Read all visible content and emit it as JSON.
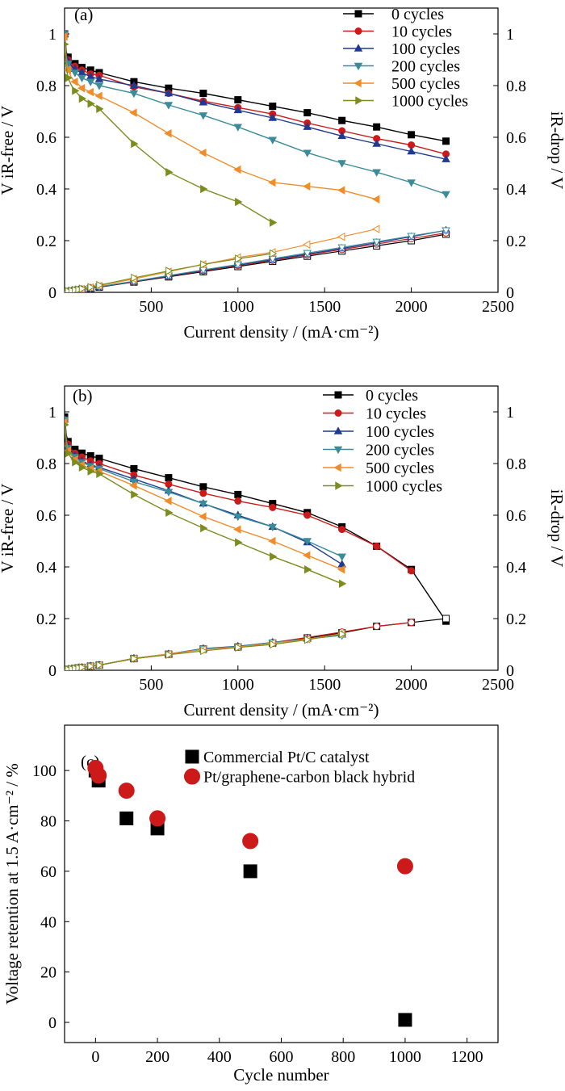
{
  "chart_data": [
    {
      "panel": "(a)",
      "type": "line",
      "xlabel": "Current density / (mA·cm⁻²)",
      "ylabel": "V iR-free / V",
      "y2label": "iR-drop / V",
      "xlim": [
        0,
        2500
      ],
      "ylim": [
        0,
        1.1
      ],
      "y2lim": [
        0,
        1.1
      ],
      "xticks": [
        500,
        1000,
        1500,
        2000,
        2500
      ],
      "yticks": [
        0,
        0.2,
        0.4,
        0.6,
        0.8,
        1.0
      ],
      "y2ticks": [
        0,
        0.2,
        0.4,
        0.6,
        0.8,
        1.0
      ],
      "legend_position": "top-right",
      "series": [
        {
          "name": "0 cycles",
          "color": "#000000",
          "marker": "square",
          "x": [
            0,
            10,
            20,
            40,
            60,
            80,
            100,
            150,
            200,
            400,
            600,
            800,
            1000,
            1200,
            1400,
            1600,
            1800,
            2000,
            2200
          ],
          "y": [
            1.0,
            0.93,
            0.91,
            0.895,
            0.885,
            0.875,
            0.87,
            0.86,
            0.85,
            0.815,
            0.79,
            0.77,
            0.745,
            0.72,
            0.695,
            0.665,
            0.64,
            0.61,
            0.585
          ],
          "ir_x": [
            0,
            20,
            40,
            60,
            80,
            100,
            150,
            200,
            400,
            600,
            800,
            1000,
            1200,
            1400,
            1600,
            1800,
            2000,
            2200
          ],
          "ir_y": [
            0.0,
            0.003,
            0.005,
            0.007,
            0.009,
            0.011,
            0.015,
            0.02,
            0.04,
            0.06,
            0.08,
            0.1,
            0.12,
            0.14,
            0.16,
            0.18,
            0.2,
            0.225
          ]
        },
        {
          "name": "10 cycles",
          "color": "#cc1a1a",
          "marker": "circle",
          "x": [
            0,
            10,
            20,
            40,
            60,
            80,
            100,
            150,
            200,
            400,
            600,
            800,
            1000,
            1200,
            1400,
            1600,
            1800,
            2000,
            2200
          ],
          "y": [
            1.0,
            0.92,
            0.9,
            0.885,
            0.875,
            0.865,
            0.86,
            0.845,
            0.84,
            0.795,
            0.77,
            0.74,
            0.715,
            0.69,
            0.655,
            0.625,
            0.595,
            0.57,
            0.535
          ],
          "ir_x": [
            0,
            20,
            40,
            60,
            80,
            100,
            150,
            200,
            400,
            600,
            800,
            1000,
            1200,
            1400,
            1600,
            1800,
            2000,
            2200
          ],
          "ir_y": [
            0.0,
            0.003,
            0.005,
            0.007,
            0.009,
            0.011,
            0.016,
            0.021,
            0.041,
            0.062,
            0.083,
            0.104,
            0.124,
            0.145,
            0.166,
            0.187,
            0.208,
            0.23
          ]
        },
        {
          "name": "100 cycles",
          "color": "#1f3a8f",
          "marker": "triangle-up",
          "x": [
            0,
            10,
            20,
            40,
            60,
            80,
            100,
            150,
            200,
            400,
            600,
            800,
            1000,
            1200,
            1400,
            1600,
            1800,
            2000,
            2200
          ],
          "y": [
            1.0,
            0.92,
            0.895,
            0.875,
            0.865,
            0.855,
            0.85,
            0.835,
            0.825,
            0.8,
            0.77,
            0.735,
            0.705,
            0.675,
            0.64,
            0.605,
            0.575,
            0.545,
            0.515
          ],
          "ir_x": [
            0,
            20,
            40,
            60,
            80,
            100,
            150,
            200,
            400,
            600,
            800,
            1000,
            1200,
            1400,
            1600,
            1800,
            2000,
            2200
          ],
          "ir_y": [
            0.0,
            0.003,
            0.005,
            0.007,
            0.009,
            0.011,
            0.016,
            0.021,
            0.042,
            0.063,
            0.085,
            0.106,
            0.127,
            0.148,
            0.17,
            0.192,
            0.215,
            0.24
          ]
        },
        {
          "name": "200 cycles",
          "color": "#3a8c9a",
          "marker": "triangle-down",
          "x": [
            0,
            10,
            20,
            40,
            60,
            80,
            100,
            150,
            200,
            400,
            600,
            800,
            1000,
            1200,
            1400,
            1600,
            1800,
            2000,
            2200
          ],
          "y": [
            1.0,
            0.91,
            0.885,
            0.865,
            0.85,
            0.84,
            0.83,
            0.815,
            0.8,
            0.77,
            0.725,
            0.685,
            0.64,
            0.59,
            0.54,
            0.5,
            0.465,
            0.425,
            0.38
          ],
          "ir_x": [
            0,
            20,
            40,
            60,
            80,
            100,
            150,
            200,
            400,
            600,
            800,
            1000,
            1200,
            1400,
            1600,
            1800,
            2000,
            2200
          ],
          "ir_y": [
            0.0,
            0.003,
            0.005,
            0.007,
            0.009,
            0.011,
            0.016,
            0.022,
            0.043,
            0.065,
            0.087,
            0.108,
            0.13,
            0.152,
            0.174,
            0.196,
            0.218,
            0.24
          ]
        },
        {
          "name": "500 cycles",
          "color": "#f08c2a",
          "marker": "triangle-left",
          "x": [
            0,
            10,
            20,
            40,
            60,
            80,
            100,
            150,
            200,
            400,
            600,
            800,
            1000,
            1200,
            1400,
            1600,
            1800
          ],
          "y": [
            0.99,
            0.89,
            0.86,
            0.83,
            0.815,
            0.805,
            0.79,
            0.775,
            0.76,
            0.695,
            0.615,
            0.54,
            0.475,
            0.425,
            0.41,
            0.395,
            0.36
          ],
          "ir_x": [
            0,
            20,
            40,
            60,
            80,
            100,
            150,
            200,
            400,
            600,
            800,
            1000,
            1200,
            1400,
            1600,
            1800
          ],
          "ir_y": [
            0.0,
            0.003,
            0.006,
            0.008,
            0.01,
            0.013,
            0.019,
            0.025,
            0.052,
            0.08,
            0.108,
            0.135,
            0.155,
            0.185,
            0.215,
            0.245
          ]
        },
        {
          "name": "1000 cycles",
          "color": "#7d8c1e",
          "marker": "triangle-right",
          "x": [
            0,
            10,
            20,
            40,
            60,
            80,
            100,
            150,
            200,
            400,
            600,
            800,
            1000,
            1200
          ],
          "y": [
            0.96,
            0.87,
            0.83,
            0.8,
            0.78,
            0.765,
            0.75,
            0.73,
            0.71,
            0.575,
            0.465,
            0.4,
            0.35,
            0.27
          ],
          "ir_x": [
            0,
            20,
            40,
            60,
            80,
            100,
            150,
            200,
            400,
            600,
            800,
            1000,
            1200
          ],
          "ir_y": [
            0.0,
            0.004,
            0.006,
            0.009,
            0.011,
            0.014,
            0.02,
            0.028,
            0.056,
            0.083,
            0.108,
            0.13,
            0.15
          ]
        }
      ]
    },
    {
      "panel": "(b)",
      "type": "line",
      "xlabel": "Current density / (mA·cm⁻²)",
      "ylabel": "V iR-free / V",
      "y2label": "iR-drop / V",
      "xlim": [
        0,
        2500
      ],
      "ylim": [
        0,
        1.1
      ],
      "y2lim": [
        0,
        1.1
      ],
      "xticks": [
        500,
        1000,
        1500,
        2000,
        2500
      ],
      "yticks": [
        0,
        0.2,
        0.4,
        0.6,
        0.8,
        1.0
      ],
      "y2ticks": [
        0,
        0.2,
        0.4,
        0.6,
        0.8,
        1.0
      ],
      "legend_position": "top-right",
      "series": [
        {
          "name": "0 cycles",
          "color": "#000000",
          "marker": "square",
          "x": [
            0,
            10,
            20,
            40,
            60,
            80,
            100,
            150,
            200,
            400,
            600,
            800,
            1000,
            1200,
            1400,
            1600,
            1800,
            2000,
            2200
          ],
          "y": [
            0.98,
            0.91,
            0.885,
            0.865,
            0.855,
            0.845,
            0.84,
            0.83,
            0.82,
            0.78,
            0.745,
            0.71,
            0.68,
            0.645,
            0.61,
            0.555,
            0.48,
            0.39,
            0.19
          ],
          "ir_x": [
            0,
            20,
            40,
            60,
            80,
            100,
            150,
            200,
            400,
            600,
            800,
            1000,
            1200,
            1400,
            1600,
            1800,
            2000,
            2200
          ],
          "ir_y": [
            0.0,
            0.003,
            0.005,
            0.007,
            0.009,
            0.011,
            0.016,
            0.02,
            0.045,
            0.062,
            0.082,
            0.09,
            0.105,
            0.125,
            0.145,
            0.17,
            0.185,
            0.2
          ]
        },
        {
          "name": "10 cycles",
          "color": "#cc1a1a",
          "marker": "circle",
          "x": [
            0,
            10,
            20,
            40,
            60,
            80,
            100,
            150,
            200,
            400,
            600,
            800,
            1000,
            1200,
            1400,
            1600,
            1800,
            2000
          ],
          "y": [
            0.97,
            0.9,
            0.875,
            0.855,
            0.84,
            0.83,
            0.825,
            0.81,
            0.8,
            0.755,
            0.72,
            0.685,
            0.655,
            0.63,
            0.6,
            0.545,
            0.48,
            0.385
          ],
          "ir_x": [
            0,
            20,
            40,
            60,
            80,
            100,
            150,
            200,
            400,
            600,
            800,
            1000,
            1200,
            1400,
            1600,
            1800,
            2000
          ],
          "ir_y": [
            0.0,
            0.003,
            0.005,
            0.007,
            0.009,
            0.011,
            0.016,
            0.02,
            0.045,
            0.062,
            0.083,
            0.092,
            0.107,
            0.127,
            0.148,
            0.17,
            0.185
          ]
        },
        {
          "name": "100 cycles",
          "color": "#1f3a8f",
          "marker": "triangle-up",
          "x": [
            0,
            10,
            20,
            40,
            60,
            80,
            100,
            150,
            200,
            400,
            600,
            800,
            1000,
            1200,
            1400,
            1600
          ],
          "y": [
            0.97,
            0.895,
            0.865,
            0.845,
            0.83,
            0.82,
            0.81,
            0.795,
            0.785,
            0.74,
            0.695,
            0.645,
            0.6,
            0.555,
            0.495,
            0.41
          ],
          "ir_x": [
            0,
            20,
            40,
            60,
            80,
            100,
            150,
            200,
            400,
            600,
            800,
            1000,
            1200,
            1400,
            1600
          ],
          "ir_y": [
            0.0,
            0.003,
            0.005,
            0.007,
            0.009,
            0.011,
            0.016,
            0.02,
            0.046,
            0.063,
            0.084,
            0.093,
            0.108,
            0.122,
            0.138
          ]
        },
        {
          "name": "200 cycles",
          "color": "#3a8c9a",
          "marker": "triangle-down",
          "x": [
            0,
            10,
            20,
            40,
            60,
            80,
            100,
            150,
            200,
            400,
            600,
            800,
            1000,
            1200,
            1400,
            1600
          ],
          "y": [
            0.97,
            0.89,
            0.86,
            0.84,
            0.825,
            0.815,
            0.805,
            0.79,
            0.78,
            0.73,
            0.69,
            0.645,
            0.595,
            0.555,
            0.5,
            0.44
          ],
          "ir_x": [
            0,
            20,
            40,
            60,
            80,
            100,
            150,
            200,
            400,
            600,
            800,
            1000,
            1200,
            1400,
            1600
          ],
          "ir_y": [
            0.0,
            0.003,
            0.005,
            0.007,
            0.009,
            0.011,
            0.016,
            0.02,
            0.046,
            0.063,
            0.083,
            0.092,
            0.107,
            0.121,
            0.135
          ]
        },
        {
          "name": "500 cycles",
          "color": "#f08c2a",
          "marker": "triangle-left",
          "x": [
            0,
            10,
            20,
            40,
            60,
            80,
            100,
            150,
            200,
            400,
            600,
            800,
            1000,
            1200,
            1400,
            1600
          ],
          "y": [
            0.96,
            0.88,
            0.85,
            0.83,
            0.815,
            0.805,
            0.795,
            0.78,
            0.77,
            0.715,
            0.655,
            0.595,
            0.545,
            0.5,
            0.445,
            0.39
          ],
          "ir_x": [
            0,
            20,
            40,
            60,
            80,
            100,
            150,
            200,
            400,
            600,
            800,
            1000,
            1200,
            1400,
            1600
          ],
          "ir_y": [
            0.0,
            0.003,
            0.005,
            0.007,
            0.009,
            0.011,
            0.016,
            0.02,
            0.046,
            0.063,
            0.08,
            0.09,
            0.105,
            0.12,
            0.142
          ]
        },
        {
          "name": "1000 cycles",
          "color": "#7d8c1e",
          "marker": "triangle-right",
          "x": [
            0,
            10,
            20,
            40,
            60,
            80,
            100,
            150,
            200,
            400,
            600,
            800,
            1000,
            1200,
            1400,
            1600
          ],
          "y": [
            0.95,
            0.87,
            0.84,
            0.82,
            0.805,
            0.795,
            0.785,
            0.77,
            0.76,
            0.68,
            0.61,
            0.55,
            0.495,
            0.44,
            0.39,
            0.335
          ],
          "ir_x": [
            0,
            20,
            40,
            60,
            80,
            100,
            150,
            200,
            400,
            600,
            800,
            1000,
            1200,
            1400,
            1600
          ],
          "ir_y": [
            0.0,
            0.003,
            0.005,
            0.007,
            0.009,
            0.011,
            0.016,
            0.02,
            0.045,
            0.06,
            0.075,
            0.088,
            0.1,
            0.118,
            0.14
          ]
        }
      ]
    },
    {
      "panel": "(c)",
      "type": "scatter",
      "xlabel": "Cycle number",
      "ylabel": "Voltage retention at 1.5 A·cm⁻² / %",
      "xlim": [
        -100,
        1300
      ],
      "ylim": [
        -8,
        118
      ],
      "xticks": [
        0,
        200,
        400,
        600,
        800,
        1000,
        1200
      ],
      "yticks": [
        0,
        20,
        40,
        60,
        80,
        100
      ],
      "legend_position": "top",
      "series": [
        {
          "name": "Commercial Pt/C catalyst",
          "color": "#000000",
          "marker": "square",
          "x": [
            0,
            10,
            100,
            200,
            500,
            1000
          ],
          "y": [
            100,
            96,
            81,
            77,
            60,
            1
          ]
        },
        {
          "name": "Pt/graphene-carbon black hybrid",
          "color": "#cc1a1a",
          "marker": "circle",
          "x": [
            0,
            10,
            100,
            200,
            500,
            1000
          ],
          "y": [
            101,
            98,
            92,
            81,
            72,
            62
          ]
        }
      ]
    }
  ]
}
